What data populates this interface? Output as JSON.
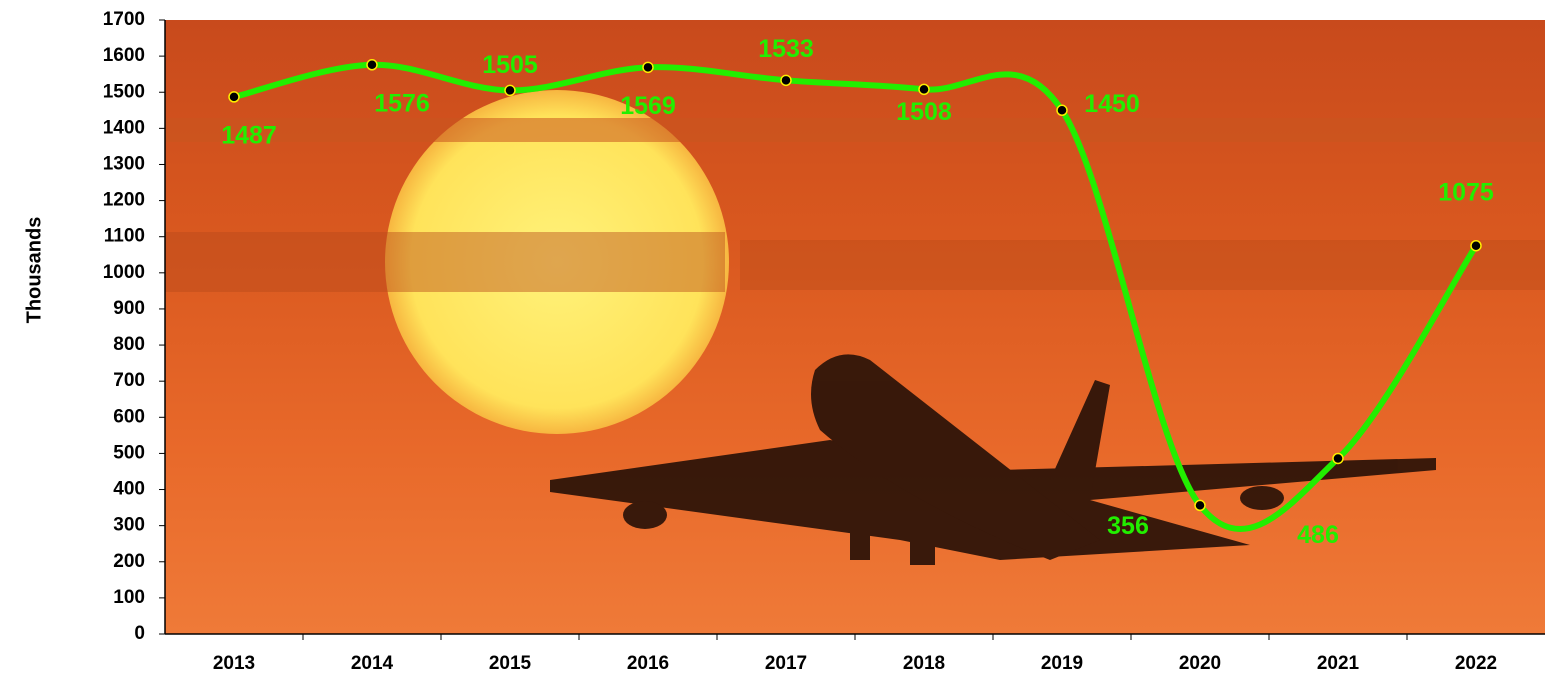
{
  "chart_data": {
    "type": "line",
    "y_axis_label": "Thousands",
    "categories": [
      "2013",
      "2014",
      "2015",
      "2016",
      "2017",
      "2018",
      "2019",
      "2020",
      "2021",
      "2022"
    ],
    "values": [
      1487,
      1576,
      1505,
      1569,
      1533,
      1508,
      1450,
      356,
      486,
      1075
    ],
    "color": "#22ee00",
    "marker_color": "#000000",
    "marker_edge": "#ffee00",
    "ylim": [
      0,
      1700
    ],
    "yticks": [
      0,
      100,
      200,
      300,
      400,
      500,
      600,
      700,
      800,
      900,
      1000,
      1100,
      1200,
      1300,
      1400,
      1500,
      1600,
      1700
    ],
    "smooth": true
  }
}
